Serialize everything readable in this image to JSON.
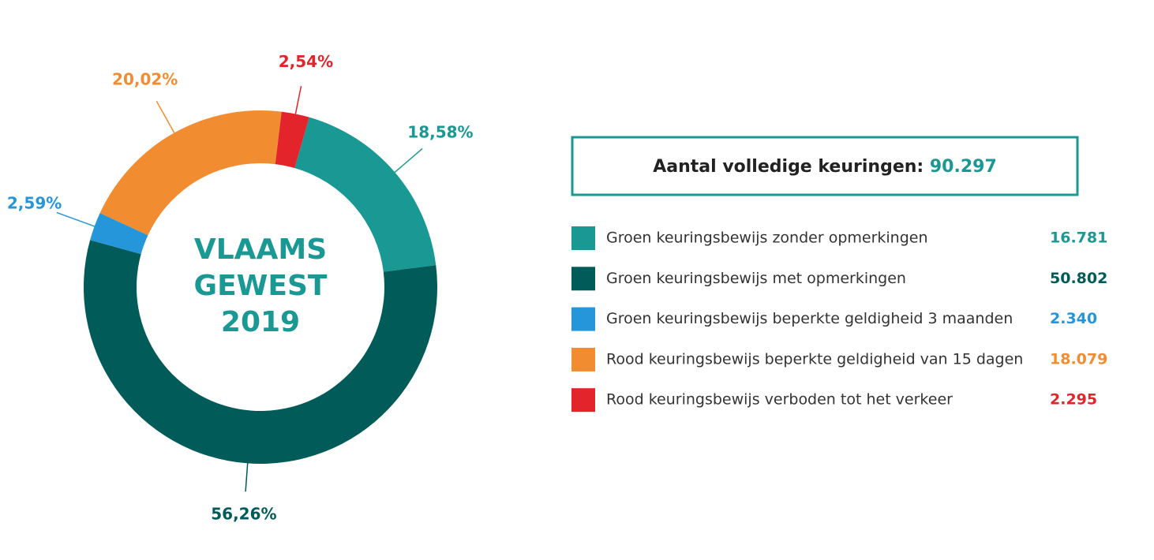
{
  "chart_data": {
    "type": "pie",
    "title": "VLAAMS GEWEST 2019",
    "categories": [
      "Groen keuringsbewijs zonder opmerkingen",
      "Groen keuringsbewijs met opmerkingen",
      "Groen keuringsbewijs beperkte geldigheid 3 maanden",
      "Rood keuringsbewijs beperkte geldigheid van 15 dagen",
      "Rood keuringsbewijs verboden tot het verkeer"
    ],
    "values": [
      18.58,
      56.26,
      2.59,
      20.02,
      2.54
    ],
    "value_labels": [
      "18,58%",
      "56,26%",
      "2,59%",
      "20,02%",
      "2,54%"
    ],
    "counts": [
      16781,
      50802,
      2340,
      18079,
      2295
    ],
    "count_labels": [
      "16.781",
      "50.802",
      "2.340",
      "18.079",
      "2.295"
    ],
    "colors": [
      "#1a9894",
      "#005b59",
      "#2496d9",
      "#f28c31",
      "#e3242b"
    ],
    "total": {
      "label": "Aantal volledige keuringen:",
      "value": 90297,
      "value_label": "90.297"
    }
  }
}
